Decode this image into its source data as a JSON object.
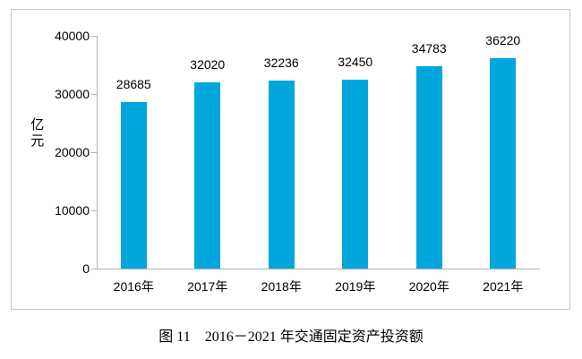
{
  "caption": "图 11　2016－2021 年交通固定资产投资额",
  "colors": {
    "bar": "#00A6DC",
    "axis": "#B3B3B3",
    "frame_border": "#C6C6C6",
    "text": "#000000"
  },
  "chart_data": {
    "type": "bar",
    "title": "",
    "categories": [
      "2016年",
      "2017年",
      "2018年",
      "2019年",
      "2020年",
      "2021年"
    ],
    "values": [
      28685,
      32020,
      32236,
      32450,
      34783,
      36220
    ],
    "data_labels": true,
    "xlabel": "",
    "ylabel": "亿元",
    "ylim": [
      0,
      40000
    ],
    "yticks": [
      0,
      10000,
      20000,
      30000,
      40000
    ],
    "grid": false,
    "legend": "none"
  }
}
